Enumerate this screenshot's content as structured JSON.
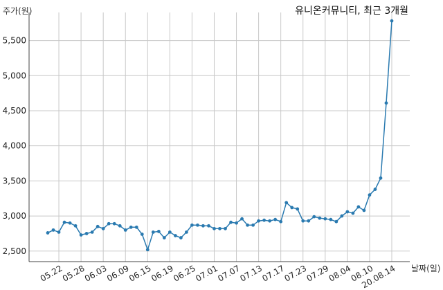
{
  "chart_data": {
    "type": "line",
    "title": "유니온커뮤니티, 최근 3개월",
    "xlabel": "날짜(일)",
    "ylabel": "주가(원)",
    "ylim": [
      2350,
      5900
    ],
    "yticks": [
      2500,
      3000,
      3500,
      4000,
      4500,
      5000,
      5500
    ],
    "ytick_labels": [
      "2,500",
      "3,000",
      "3,500",
      "4,000",
      "4,500",
      "5,000",
      "5,500"
    ],
    "xtick_labels": [
      "05.22",
      "05.28",
      "06.03",
      "06.09",
      "06.15",
      "06.19",
      "06.25",
      "07.01",
      "07.07",
      "07.13",
      "07.17",
      "07.23",
      "07.29",
      "08.04",
      "08.10",
      "20.08.14"
    ],
    "xtick_indices": [
      2,
      6,
      10,
      14,
      18,
      22,
      26,
      30,
      34,
      38,
      42,
      46,
      50,
      54,
      58,
      62
    ],
    "grid": true,
    "color": "#2a7ab0",
    "series": [
      {
        "values": [
          2760,
          2800,
          2770,
          2910,
          2900,
          2860,
          2730,
          2750,
          2770,
          2850,
          2820,
          2890,
          2890,
          2860,
          2800,
          2840,
          2840,
          2740,
          2520,
          2770,
          2780,
          2690,
          2770,
          2720,
          2690,
          2770,
          2870,
          2870,
          2860,
          2860,
          2820,
          2820,
          2820,
          2910,
          2900,
          2960,
          2870,
          2870,
          2930,
          2940,
          2930,
          2950,
          2920,
          3190,
          3120,
          3100,
          2930,
          2930,
          2990,
          2970,
          2960,
          2950,
          2920,
          3000,
          3060,
          3040,
          3130,
          3080,
          3300,
          3380,
          3540,
          4610,
          5780
        ]
      }
    ]
  }
}
